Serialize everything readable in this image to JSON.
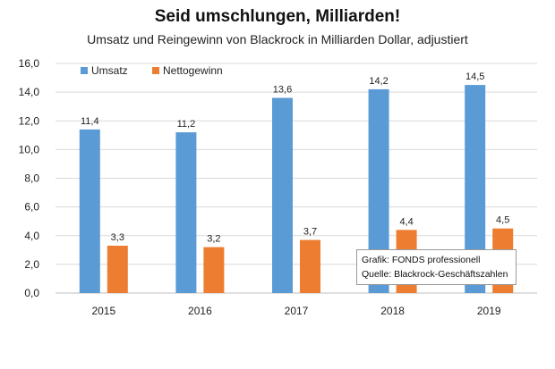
{
  "chart_data": {
    "type": "bar",
    "title": "Seid umschlungen, Milliarden!",
    "subtitle": "Umsatz und Reingewinn von Blackrock in Milliarden Dollar, adjustiert",
    "categories": [
      "2015",
      "2016",
      "2017",
      "2018",
      "2019"
    ],
    "series": [
      {
        "name": "Umsatz",
        "color": "#5b9bd5",
        "values": [
          11.4,
          11.2,
          13.6,
          14.2,
          14.5
        ],
        "labels": [
          "11,4",
          "11,2",
          "13,6",
          "14,2",
          "14,5"
        ]
      },
      {
        "name": "Nettogewinn",
        "color": "#ed7d31",
        "values": [
          3.3,
          3.2,
          3.7,
          4.4,
          4.5
        ],
        "labels": [
          "3,3",
          "3,2",
          "3,7",
          "4,4",
          "4,5"
        ]
      }
    ],
    "ylim": [
      0,
      16
    ],
    "yticks": [
      "0,0",
      "2,0",
      "4,0",
      "6,0",
      "8,0",
      "10,0",
      "12,0",
      "14,0",
      "16,0"
    ],
    "grid": true,
    "legend": "top-left",
    "xlabel": "",
    "ylabel": ""
  },
  "source_box": {
    "line1": "Grafik: FONDS professionell",
    "line2": "Quelle: Blackrock-Geschäftszahlen"
  }
}
